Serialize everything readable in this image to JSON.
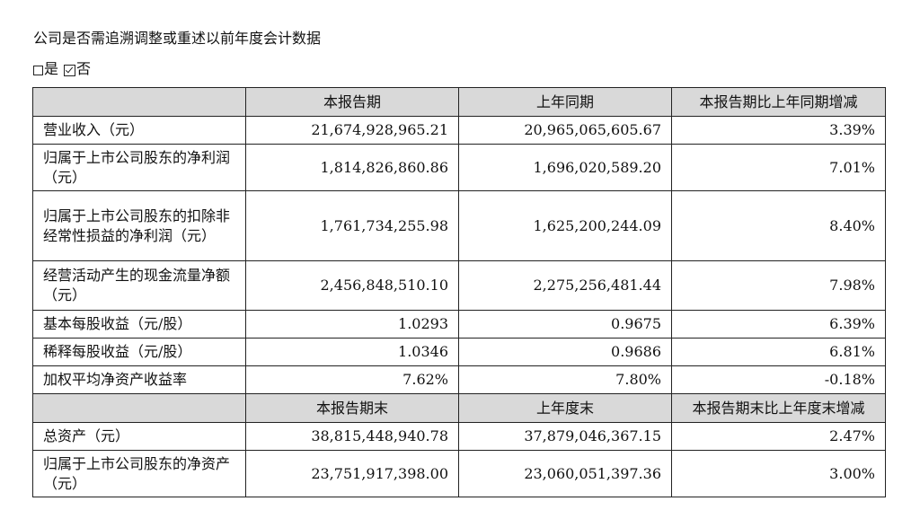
{
  "heading": "公司是否需追溯调整或重述以前年度会计数据",
  "options": {
    "yes_label": "是",
    "no_label": "否",
    "yes_checked": false,
    "no_checked": true
  },
  "table": {
    "header1": [
      "",
      "本报告期",
      "上年同期",
      "本报告期比上年同期增减"
    ],
    "rows1": [
      {
        "label": "营业收入（元）",
        "current": "21,674,928,965.21",
        "previous": "20,965,065,605.67",
        "change": "3.39%"
      },
      {
        "label": "归属于上市公司股东的净利润（元）",
        "current": "1,814,826,860.86",
        "previous": "1,696,020,589.20",
        "change": "7.01%"
      },
      {
        "label": "归属于上市公司股东的扣除非经常性损益的净利润（元）",
        "current": "1,761,734,255.98",
        "previous": "1,625,200,244.09",
        "change": "8.40%"
      },
      {
        "label": "经营活动产生的现金流量净额（元）",
        "current": "2,456,848,510.10",
        "previous": "2,275,256,481.44",
        "change": "7.98%"
      },
      {
        "label": "基本每股收益（元/股）",
        "current": "1.0293",
        "previous": "0.9675",
        "change": "6.39%"
      },
      {
        "label": "稀释每股收益（元/股）",
        "current": "1.0346",
        "previous": "0.9686",
        "change": "6.81%"
      },
      {
        "label": "加权平均净资产收益率",
        "current": "7.62%",
        "previous": "7.80%",
        "change": "-0.18%"
      }
    ],
    "header2": [
      "",
      "本报告期末",
      "上年度末",
      "本报告期末比上年度末增减"
    ],
    "rows2": [
      {
        "label": "总资产（元）",
        "current": "38,815,448,940.78",
        "previous": "37,879,046,367.15",
        "change": "2.47%"
      },
      {
        "label": "归属于上市公司股东的净资产（元）",
        "current": "23,751,917,398.00",
        "previous": "23,060,051,397.36",
        "change": "3.00%"
      }
    ]
  }
}
